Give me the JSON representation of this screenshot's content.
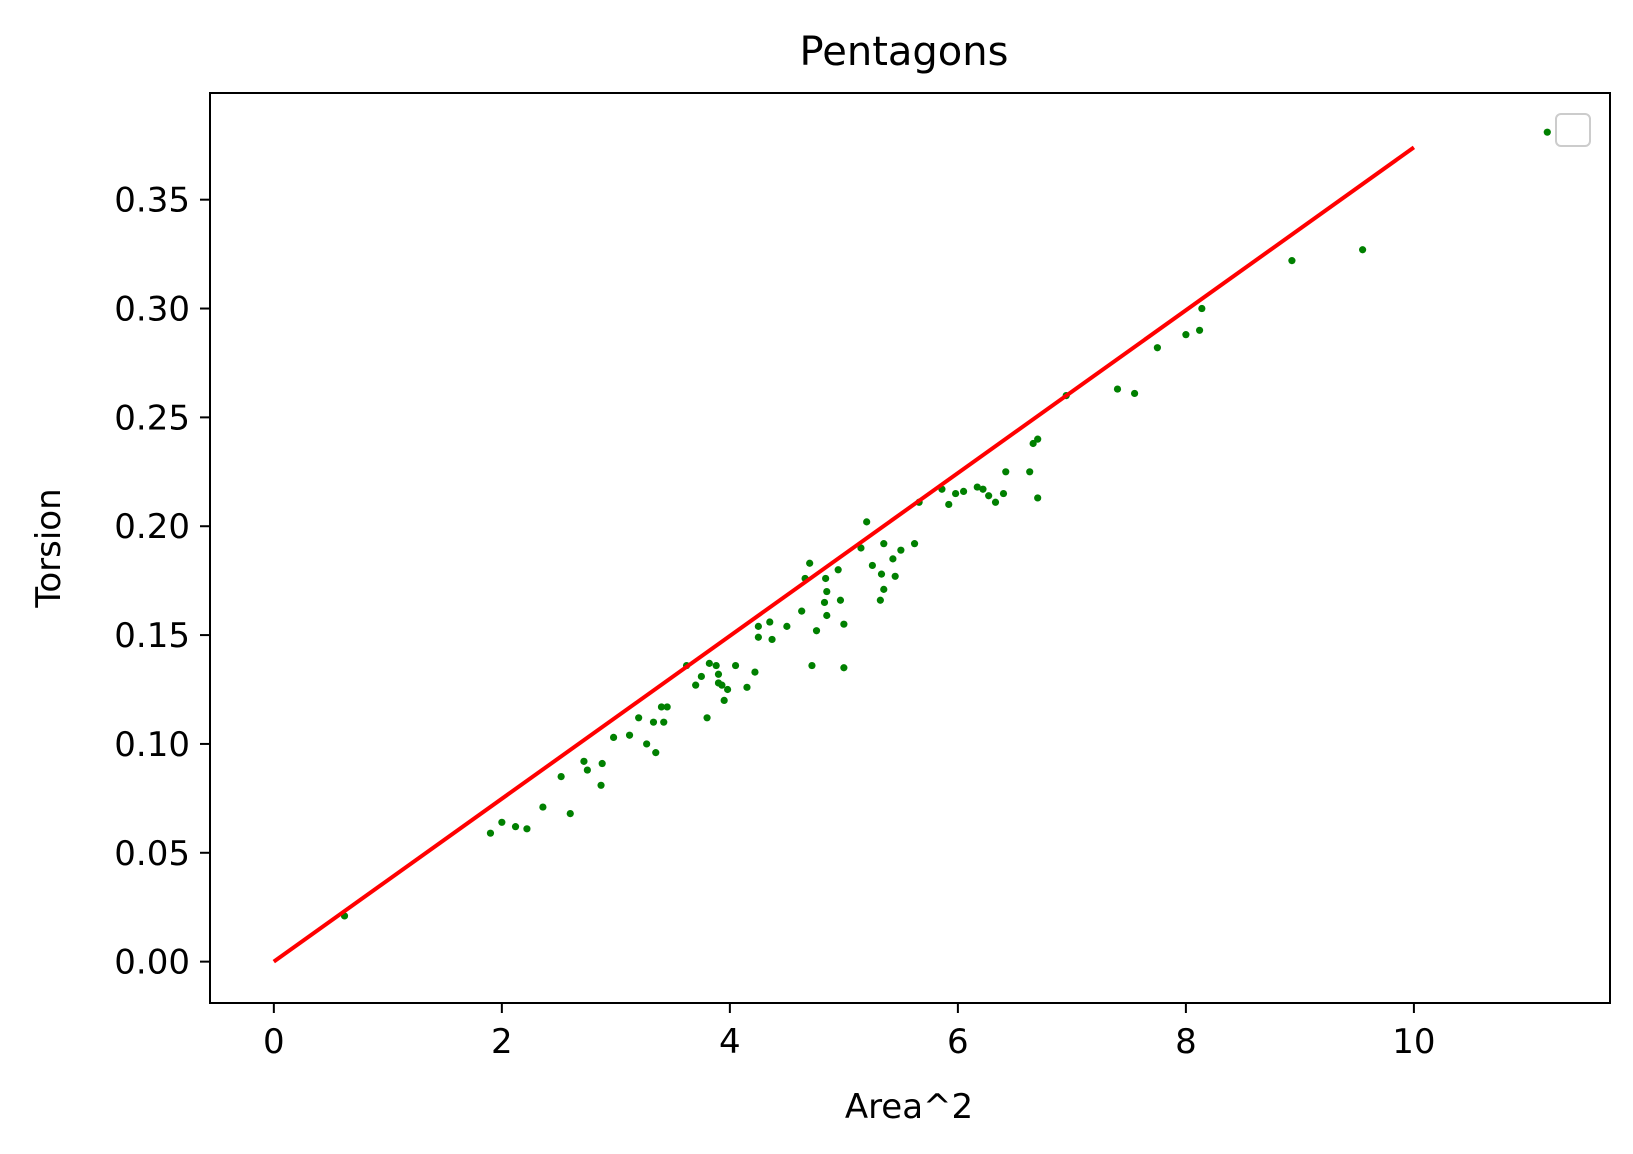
{
  "chart_data": {
    "type": "scatter",
    "title": "Pentagons",
    "xlabel": "Area^2",
    "ylabel": "Torsion",
    "xlim": [
      -0.56,
      11.72
    ],
    "ylim": [
      -0.019,
      0.399
    ],
    "xticks": [
      0,
      2,
      4,
      6,
      8,
      10
    ],
    "xtick_labels": [
      "0",
      "2",
      "4",
      "6",
      "8",
      "10"
    ],
    "yticks": [
      0.0,
      0.05,
      0.1,
      0.15,
      0.2,
      0.25,
      0.3,
      0.35
    ],
    "ytick_labels": [
      "0.00",
      "0.05",
      "0.10",
      "0.15",
      "0.20",
      "0.25",
      "0.30",
      "0.35"
    ],
    "grid": false,
    "legend": {
      "placement": "top-right",
      "entries": []
    },
    "series": [
      {
        "kind": "scatter",
        "color": "#008000",
        "points": [
          [
            0.62,
            0.021
          ],
          [
            1.9,
            0.059
          ],
          [
            2.0,
            0.064
          ],
          [
            2.12,
            0.062
          ],
          [
            2.22,
            0.061
          ],
          [
            2.36,
            0.071
          ],
          [
            2.52,
            0.085
          ],
          [
            2.6,
            0.068
          ],
          [
            2.72,
            0.092
          ],
          [
            2.75,
            0.088
          ],
          [
            2.87,
            0.081
          ],
          [
            2.88,
            0.091
          ],
          [
            2.98,
            0.103
          ],
          [
            3.12,
            0.104
          ],
          [
            3.2,
            0.112
          ],
          [
            3.27,
            0.1
          ],
          [
            3.33,
            0.11
          ],
          [
            3.35,
            0.096
          ],
          [
            3.4,
            0.117
          ],
          [
            3.42,
            0.11
          ],
          [
            3.45,
            0.117
          ],
          [
            3.62,
            0.136
          ],
          [
            3.7,
            0.127
          ],
          [
            3.75,
            0.131
          ],
          [
            3.8,
            0.112
          ],
          [
            3.82,
            0.137
          ],
          [
            3.88,
            0.136
          ],
          [
            3.9,
            0.132
          ],
          [
            3.9,
            0.128
          ],
          [
            3.93,
            0.127
          ],
          [
            3.95,
            0.12
          ],
          [
            3.98,
            0.125
          ],
          [
            4.05,
            0.136
          ],
          [
            4.15,
            0.126
          ],
          [
            4.22,
            0.133
          ],
          [
            4.25,
            0.149
          ],
          [
            4.25,
            0.154
          ],
          [
            4.35,
            0.156
          ],
          [
            4.37,
            0.148
          ],
          [
            4.5,
            0.154
          ],
          [
            4.63,
            0.161
          ],
          [
            4.66,
            0.176
          ],
          [
            4.7,
            0.183
          ],
          [
            4.72,
            0.136
          ],
          [
            4.76,
            0.152
          ],
          [
            4.83,
            0.165
          ],
          [
            4.84,
            0.176
          ],
          [
            4.85,
            0.159
          ],
          [
            4.85,
            0.17
          ],
          [
            4.95,
            0.18
          ],
          [
            4.97,
            0.166
          ],
          [
            5.0,
            0.155
          ],
          [
            5.0,
            0.135
          ],
          [
            5.15,
            0.19
          ],
          [
            5.2,
            0.202
          ],
          [
            5.25,
            0.182
          ],
          [
            5.32,
            0.166
          ],
          [
            5.33,
            0.178
          ],
          [
            5.35,
            0.171
          ],
          [
            5.35,
            0.192
          ],
          [
            5.43,
            0.185
          ],
          [
            5.45,
            0.177
          ],
          [
            5.5,
            0.189
          ],
          [
            5.62,
            0.192
          ],
          [
            5.66,
            0.211
          ],
          [
            5.86,
            0.217
          ],
          [
            5.92,
            0.21
          ],
          [
            5.98,
            0.215
          ],
          [
            6.05,
            0.216
          ],
          [
            6.17,
            0.218
          ],
          [
            6.22,
            0.217
          ],
          [
            6.27,
            0.214
          ],
          [
            6.33,
            0.211
          ],
          [
            6.4,
            0.215
          ],
          [
            6.42,
            0.225
          ],
          [
            6.63,
            0.225
          ],
          [
            6.66,
            0.238
          ],
          [
            6.7,
            0.213
          ],
          [
            6.7,
            0.24
          ],
          [
            6.95,
            0.26
          ],
          [
            7.4,
            0.263
          ],
          [
            7.55,
            0.261
          ],
          [
            7.75,
            0.282
          ],
          [
            8.0,
            0.288
          ],
          [
            8.12,
            0.29
          ],
          [
            8.14,
            0.3
          ],
          [
            8.93,
            0.322
          ],
          [
            9.55,
            0.327
          ],
          [
            11.17,
            0.381
          ]
        ]
      },
      {
        "kind": "line",
        "color": "#ff0000",
        "points": [
          [
            0,
            0.0
          ],
          [
            10,
            0.374
          ]
        ]
      }
    ]
  }
}
